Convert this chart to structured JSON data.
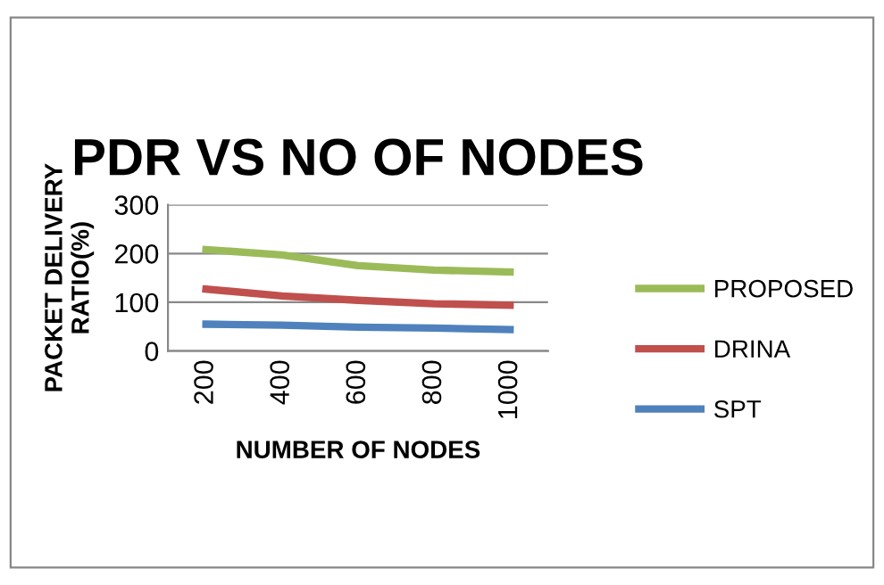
{
  "chart_data": {
    "type": "line",
    "title": "PDR VS NO OF NODES",
    "xlabel": "NUMBER OF NODES",
    "ylabel": "PACKET DELIVERY\nRATIO(%)",
    "categories": [
      "200",
      "400",
      "600",
      "800",
      "1000"
    ],
    "series": [
      {
        "name": "PROPOSED",
        "color": "#9bbb59",
        "values": [
          208,
          197,
          175,
          166,
          162
        ]
      },
      {
        "name": "DRINA",
        "color": "#c0504d",
        "values": [
          127,
          113,
          104,
          97,
          94
        ]
      },
      {
        "name": "SPT",
        "color": "#4f81bd",
        "values": [
          55,
          53,
          49,
          47,
          44
        ]
      }
    ],
    "ylim": [
      0,
      300
    ],
    "yticks": [
      0,
      100,
      200,
      300
    ],
    "grid": "y",
    "legend": "right",
    "marker": "none",
    "line_style": "solid"
  }
}
